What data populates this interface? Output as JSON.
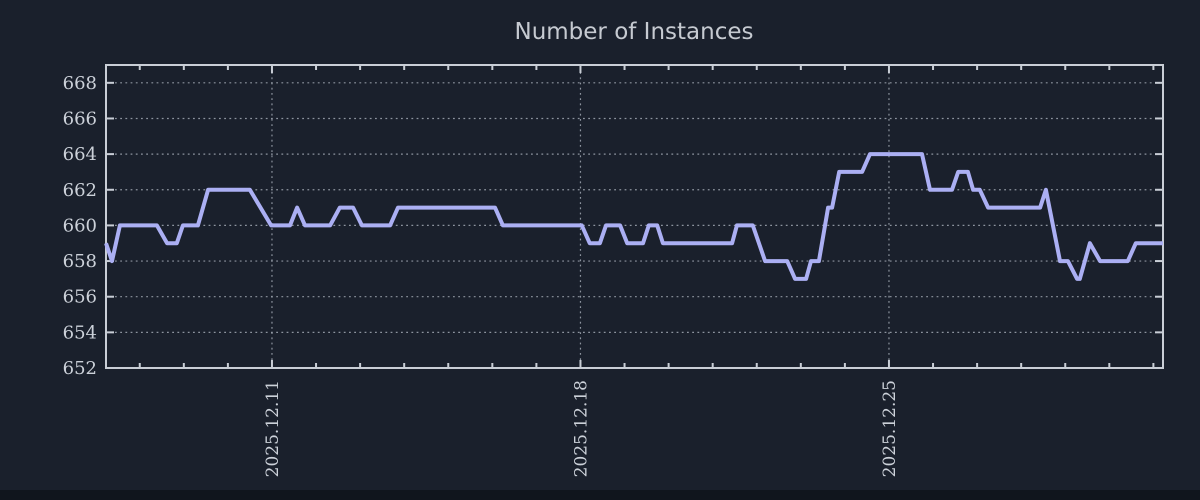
{
  "chart_data": {
    "type": "line",
    "title": "Number of Instances",
    "xlabel": "",
    "ylabel": "",
    "x_unit": "day of December 2025",
    "xlim": [
      7.234,
      31.218
    ],
    "ylim": [
      652,
      669
    ],
    "grid": "dotted",
    "legend": "none",
    "y_ticks": [
      {
        "v": 652,
        "label": "652"
      },
      {
        "v": 654,
        "label": "654"
      },
      {
        "v": 656,
        "label": "656"
      },
      {
        "v": 658,
        "label": "658"
      },
      {
        "v": 660,
        "label": "660"
      },
      {
        "v": 662,
        "label": "662"
      },
      {
        "v": 664,
        "label": "664"
      },
      {
        "v": 666,
        "label": "666"
      },
      {
        "v": 668,
        "label": "668"
      }
    ],
    "x_major_ticks": [
      {
        "t": 11,
        "label": "2025.12.11"
      },
      {
        "t": 18,
        "label": "2025.12.18"
      },
      {
        "t": 25,
        "label": "2025.12.25"
      }
    ],
    "x_minor_step_days": 1,
    "colors": {
      "background": "#1a202c",
      "line": "#abaff3",
      "grid": "#9aa1ac",
      "border": "#c9ced6",
      "tick_text": "#ccd1d9",
      "title_text": "#c6cad1",
      "footer_bar": "#10151d"
    },
    "series": [
      {
        "name": "instances",
        "points": [
          [
            7.234,
            659
          ],
          [
            7.37,
            658
          ],
          [
            7.55,
            660
          ],
          [
            8.39,
            660
          ],
          [
            8.62,
            659
          ],
          [
            8.84,
            659
          ],
          [
            8.98,
            660
          ],
          [
            9.32,
            660
          ],
          [
            9.55,
            662
          ],
          [
            10.5,
            662
          ],
          [
            10.98,
            660
          ],
          [
            11.41,
            660
          ],
          [
            11.57,
            661
          ],
          [
            11.75,
            660
          ],
          [
            12.32,
            660
          ],
          [
            12.54,
            661
          ],
          [
            12.84,
            661
          ],
          [
            13.04,
            660
          ],
          [
            13.68,
            660
          ],
          [
            13.86,
            661
          ],
          [
            16.06,
            661
          ],
          [
            16.24,
            660
          ],
          [
            18.03,
            660
          ],
          [
            18.21,
            659
          ],
          [
            18.44,
            659
          ],
          [
            18.58,
            660
          ],
          [
            18.9,
            660
          ],
          [
            19.06,
            659
          ],
          [
            19.42,
            659
          ],
          [
            19.55,
            660
          ],
          [
            19.74,
            660
          ],
          [
            19.87,
            659
          ],
          [
            21.44,
            659
          ],
          [
            21.55,
            660
          ],
          [
            21.91,
            660
          ],
          [
            22.19,
            658
          ],
          [
            22.69,
            658
          ],
          [
            22.87,
            657
          ],
          [
            23.12,
            657
          ],
          [
            23.23,
            658
          ],
          [
            23.41,
            658
          ],
          [
            23.62,
            661
          ],
          [
            23.71,
            661
          ],
          [
            23.87,
            663
          ],
          [
            24.39,
            663
          ],
          [
            24.57,
            664
          ],
          [
            25.75,
            664
          ],
          [
            25.93,
            662
          ],
          [
            26.43,
            662
          ],
          [
            26.57,
            663
          ],
          [
            26.79,
            663
          ],
          [
            26.91,
            662
          ],
          [
            27.06,
            662
          ],
          [
            27.25,
            661
          ],
          [
            28.43,
            661
          ],
          [
            28.56,
            662
          ],
          [
            28.88,
            658
          ],
          [
            29.06,
            658
          ],
          [
            29.27,
            657
          ],
          [
            29.33,
            657
          ],
          [
            29.56,
            659
          ],
          [
            29.79,
            658
          ],
          [
            30.42,
            658
          ],
          [
            30.6,
            659
          ],
          [
            31.218,
            659
          ]
        ]
      }
    ]
  }
}
